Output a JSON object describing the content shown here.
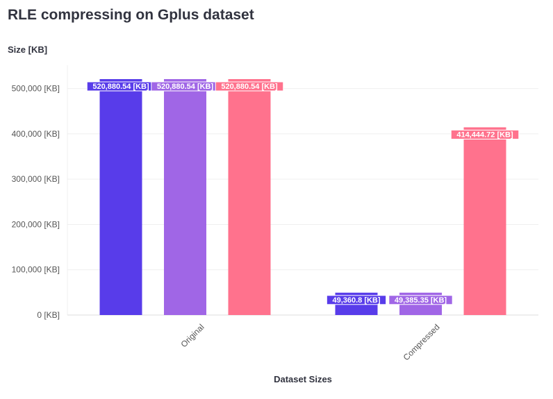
{
  "chart_data": {
    "type": "bar",
    "title": "RLE compressing on Gplus dataset",
    "xlabel": "Dataset Sizes",
    "ylabel": "Size [KB]",
    "categories": [
      "Original",
      "Compressed"
    ],
    "series": [
      {
        "values": [
          520880.54,
          49360.8
        ],
        "labels": [
          "520,880.54 [KB]",
          "49,360.8 [KB]"
        ],
        "color": "#583cea"
      },
      {
        "values": [
          520880.54,
          49385.35
        ],
        "labels": [
          "520,880.54 [KB]",
          "49,385.35 [KB]"
        ],
        "color": "#a066e6"
      },
      {
        "values": [
          520880.54,
          414444.72
        ],
        "labels": [
          "520,880.54 [KB]",
          "414,444.72 [KB]"
        ],
        "color": "#ff728d"
      }
    ],
    "ylim": [
      0,
      520880.54
    ],
    "yticks": [
      0,
      100000,
      200000,
      300000,
      400000,
      500000
    ],
    "ytick_labels": [
      "0 [KB]",
      "100,000 [KB]",
      "200,000 [KB]",
      "300,000 [KB]",
      "400,000 [KB]",
      "500,000 [KB]"
    ],
    "grid": true,
    "legend": "none"
  }
}
